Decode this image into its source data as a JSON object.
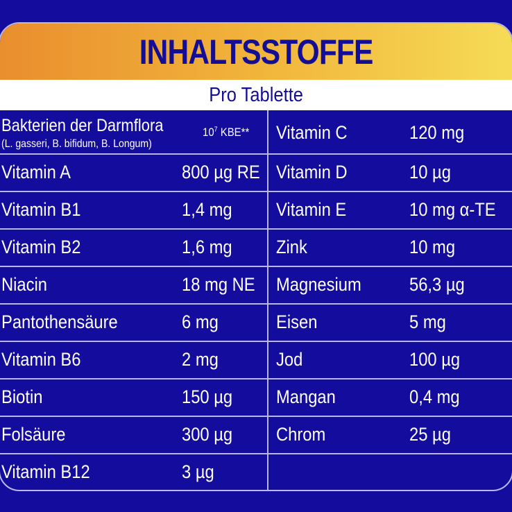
{
  "header": {
    "title": "INHALTSSTOFFE",
    "subtitle": "Pro Tablette"
  },
  "first_row": {
    "name": "Bakterien der Darmflora",
    "detail": "(L. gasseri, B. bifidum, B. Longum)",
    "value_base": "10",
    "value_exp": "7",
    "value_unit": "KBE**"
  },
  "left": [
    {
      "name": "Vitamin A",
      "value": "800 µg RE"
    },
    {
      "name": "Vitamin B1",
      "value": "1,4 mg"
    },
    {
      "name": "Vitamin B2",
      "value": "1,6 mg"
    },
    {
      "name": "Niacin",
      "value": "18 mg NE"
    },
    {
      "name": "Pantothensäure",
      "value": "6 mg"
    },
    {
      "name": "Vitamin B6",
      "value": "2 mg"
    },
    {
      "name": "Biotin",
      "value": "150 µg"
    },
    {
      "name": "Folsäure",
      "value": "300 µg"
    },
    {
      "name": "Vitamin B12",
      "value": "3 µg"
    }
  ],
  "right": [
    {
      "name": "Vitamin C",
      "value": "120 mg"
    },
    {
      "name": "Vitamin D",
      "value": "10 µg"
    },
    {
      "name": "Vitamin E",
      "value": "10 mg α-TE"
    },
    {
      "name": "Zink",
      "value": "10 mg"
    },
    {
      "name": "Magnesium",
      "value": "56,3 µg"
    },
    {
      "name": "Eisen",
      "value": "5 mg"
    },
    {
      "name": "Jod",
      "value": "100 µg"
    },
    {
      "name": "Mangan",
      "value": "0,4 mg"
    },
    {
      "name": "Chrom",
      "value": "25 µg"
    }
  ],
  "colors": {
    "background": "#140c9c",
    "title": "#130e94",
    "band_start": "#e98e2e",
    "band_end": "#f6db57"
  }
}
